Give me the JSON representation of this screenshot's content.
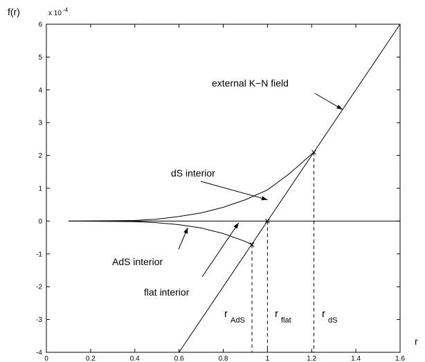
{
  "chart_data": {
    "type": "line",
    "title": "",
    "xlabel": "r",
    "ylabel": "f(r)",
    "y_scale_note": "x 10",
    "y_scale_exponent": "-4",
    "xlim": [
      0,
      1.6
    ],
    "ylim": [
      -4,
      6
    ],
    "x_ticks": [
      0,
      0.2,
      0.4,
      0.6,
      0.8,
      1,
      1.2,
      1.4,
      1.6
    ],
    "x_tick_labels": [
      "0",
      "0.2",
      "0.4",
      "0.6",
      "0.8",
      "1",
      "1.2",
      "1.4",
      "1.6"
    ],
    "y_ticks": [
      -4,
      -3,
      -2,
      -1,
      0,
      1,
      2,
      3,
      4,
      5,
      6
    ],
    "y_tick_labels": [
      "-4",
      "-3",
      "-2",
      "-1",
      "0",
      "1",
      "2",
      "3",
      "4",
      "5",
      "6"
    ],
    "grid": false,
    "series": [
      {
        "key": "external",
        "style": "solid",
        "x": [
          0.6,
          1.6
        ],
        "y": [
          -4.0,
          6.0
        ]
      },
      {
        "key": "dS",
        "style": "solid",
        "x": [
          0.1,
          0.3,
          0.4,
          0.5,
          0.6,
          0.7,
          0.8,
          0.9,
          1.0,
          1.1,
          1.21
        ],
        "y": [
          0.0,
          0.01,
          0.02,
          0.06,
          0.14,
          0.25,
          0.42,
          0.65,
          0.95,
          1.45,
          2.1
        ]
      },
      {
        "key": "AdS",
        "style": "solid",
        "x": [
          0.1,
          0.3,
          0.4,
          0.5,
          0.6,
          0.7,
          0.8,
          0.9,
          0.93
        ],
        "y": [
          0.0,
          -0.01,
          -0.02,
          -0.05,
          -0.11,
          -0.21,
          -0.38,
          -0.62,
          -0.72
        ]
      },
      {
        "key": "flat",
        "style": "dotted",
        "x": [
          0.1,
          1.0
        ],
        "y": [
          0.0,
          0.0
        ]
      },
      {
        "key": "zero-axis",
        "style": "solid",
        "x": [
          0.1,
          1.6
        ],
        "y": [
          0.0,
          0.0
        ]
      }
    ],
    "markers": [
      {
        "key": "r_AdS",
        "x": 0.93,
        "y": -0.72
      },
      {
        "key": "r_flat",
        "x": 1.0,
        "y": 0.0
      },
      {
        "key": "r_dS",
        "x": 1.21,
        "y": 2.1
      }
    ],
    "annotations": [
      {
        "key": "external",
        "text": "external K−N field",
        "pointer_to": [
          1.34,
          3.4
        ]
      },
      {
        "key": "dS",
        "text": "dS interior",
        "pointer_to": [
          1.0,
          0.65
        ]
      },
      {
        "key": "AdS",
        "text": "AdS interior",
        "pointer_to": [
          0.64,
          -0.2
        ]
      },
      {
        "key": "flat",
        "text": "flat interior",
        "pointer_to": [
          0.87,
          -0.05
        ]
      }
    ],
    "r_labels": [
      {
        "key": "AdS",
        "base": "r",
        "sub": "AdS"
      },
      {
        "key": "flat",
        "base": "r",
        "sub": "flat"
      },
      {
        "key": "dS",
        "base": "r",
        "sub": "dS"
      }
    ]
  }
}
